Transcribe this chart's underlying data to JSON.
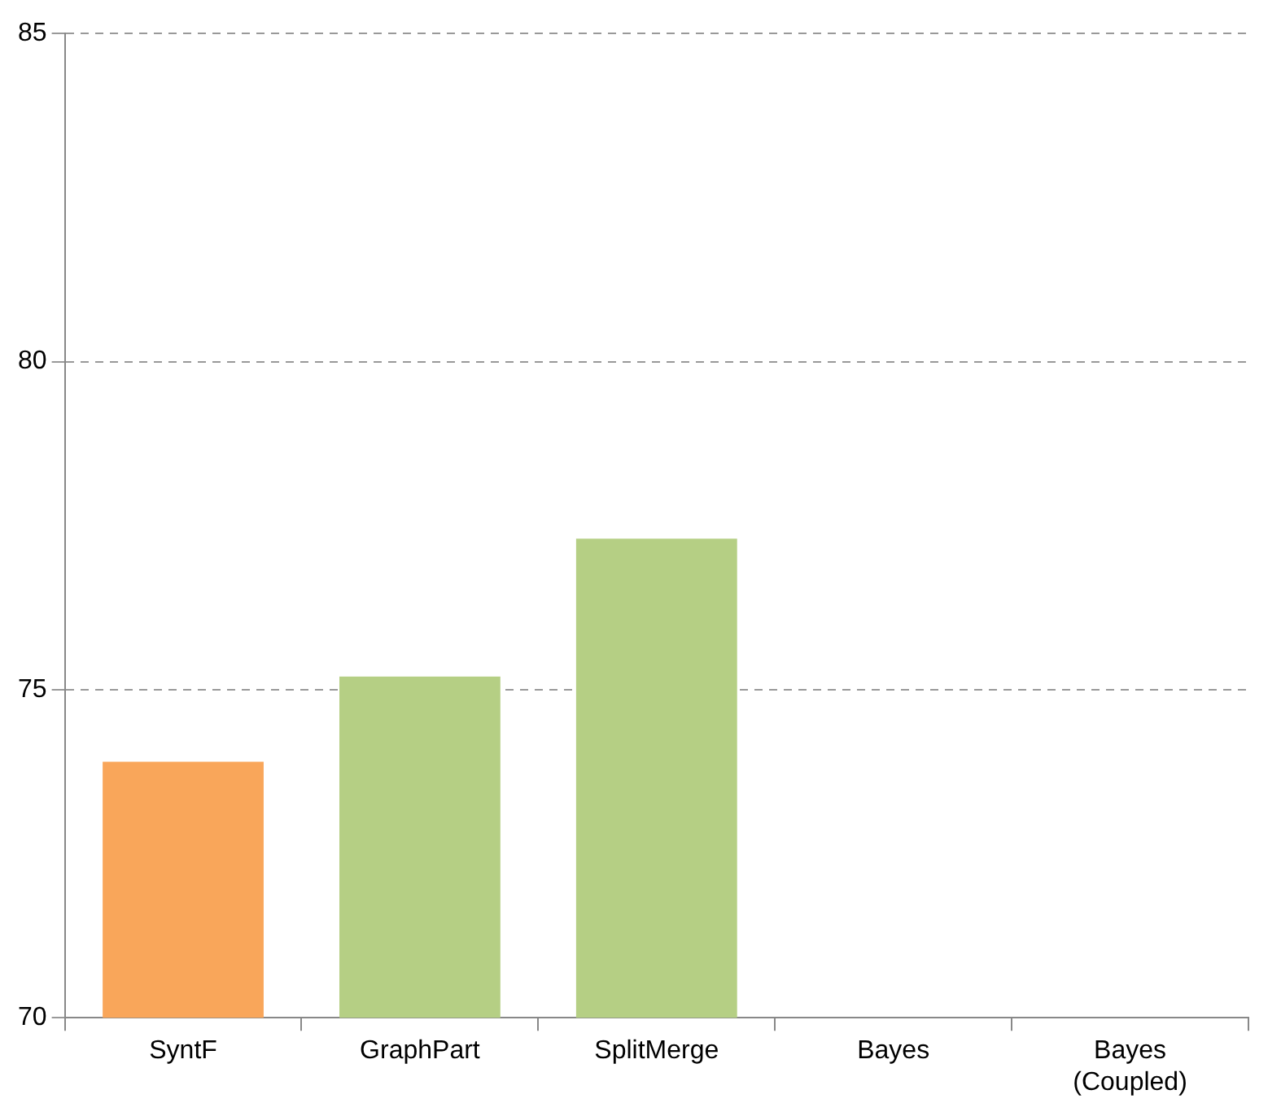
{
  "chart_data": {
    "type": "bar",
    "categories": [
      "SyntF",
      "GraphPart",
      "SplitMerge",
      "Bayes",
      "Bayes (Coupled)"
    ],
    "values": [
      73.9,
      75.2,
      77.3,
      null,
      null
    ],
    "colors": [
      "#f9a65a",
      "#b5cf84",
      "#b5cf84",
      "#b5cf84",
      "#b5cf84"
    ],
    "ylim": [
      70,
      85
    ],
    "yticks": [
      70,
      75,
      80,
      85
    ],
    "grid": "y"
  }
}
